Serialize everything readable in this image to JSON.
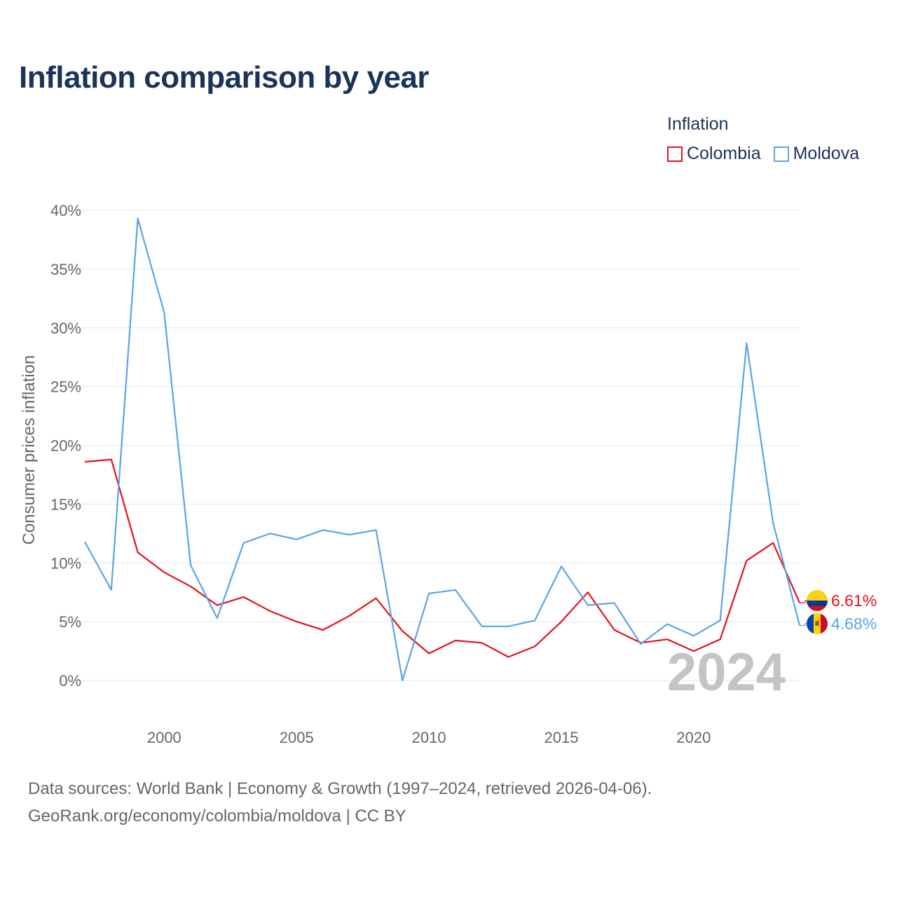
{
  "header": {
    "title": "Inflation comparison by year"
  },
  "legend": {
    "title": "Inflation",
    "items": [
      {
        "label": "Colombia",
        "color": "#e8111b"
      },
      {
        "label": "Moldova",
        "color": "#5ba4e6"
      }
    ]
  },
  "footer": {
    "source_line1": "Data sources: World Bank | Economy & Growth (1997–2024, retrieved 2026-04-06).",
    "source_line2": "GeoRank.org/economy/colombia/moldova | CC BY"
  },
  "chart_data": {
    "type": "line",
    "title": "Inflation comparison by year",
    "xlabel": "",
    "ylabel": "Consumer prices inflation",
    "xlim": [
      1997,
      2024
    ],
    "ylim": [
      0,
      40
    ],
    "x_ticks": [
      2000,
      2005,
      2010,
      2015,
      2020
    ],
    "y_ticks": [
      "0%",
      "5%",
      "10%",
      "15%",
      "20%",
      "25%",
      "30%",
      "35%",
      "40%"
    ],
    "y_tick_values": [
      0,
      5,
      10,
      15,
      20,
      25,
      30,
      35,
      40
    ],
    "grid": true,
    "legend_position": "top-right",
    "watermark_year": "2024",
    "x": [
      1997,
      1998,
      1999,
      2000,
      2001,
      2002,
      2003,
      2004,
      2005,
      2006,
      2007,
      2008,
      2009,
      2010,
      2011,
      2012,
      2013,
      2014,
      2015,
      2016,
      2017,
      2018,
      2019,
      2020,
      2021,
      2022,
      2023,
      2024
    ],
    "series": [
      {
        "name": "Colombia",
        "color": "#e8111b",
        "end_label": "6.61%",
        "values": [
          18.6,
          18.8,
          10.9,
          9.2,
          8.0,
          6.4,
          7.1,
          5.9,
          5.0,
          4.3,
          5.5,
          7.0,
          4.2,
          2.3,
          3.4,
          3.2,
          2.0,
          2.9,
          5.0,
          7.5,
          4.3,
          3.2,
          3.5,
          2.5,
          3.5,
          10.2,
          11.7,
          6.61
        ]
      },
      {
        "name": "Moldova",
        "color": "#5ba4e6",
        "end_label": "4.68%",
        "values": [
          11.8,
          7.7,
          39.3,
          31.3,
          9.8,
          5.3,
          11.7,
          12.5,
          12.0,
          12.8,
          12.4,
          12.8,
          0.0,
          7.4,
          7.7,
          4.6,
          4.6,
          5.1,
          9.7,
          6.4,
          6.6,
          3.1,
          4.8,
          3.8,
          5.1,
          28.7,
          13.4,
          4.68
        ]
      }
    ]
  }
}
